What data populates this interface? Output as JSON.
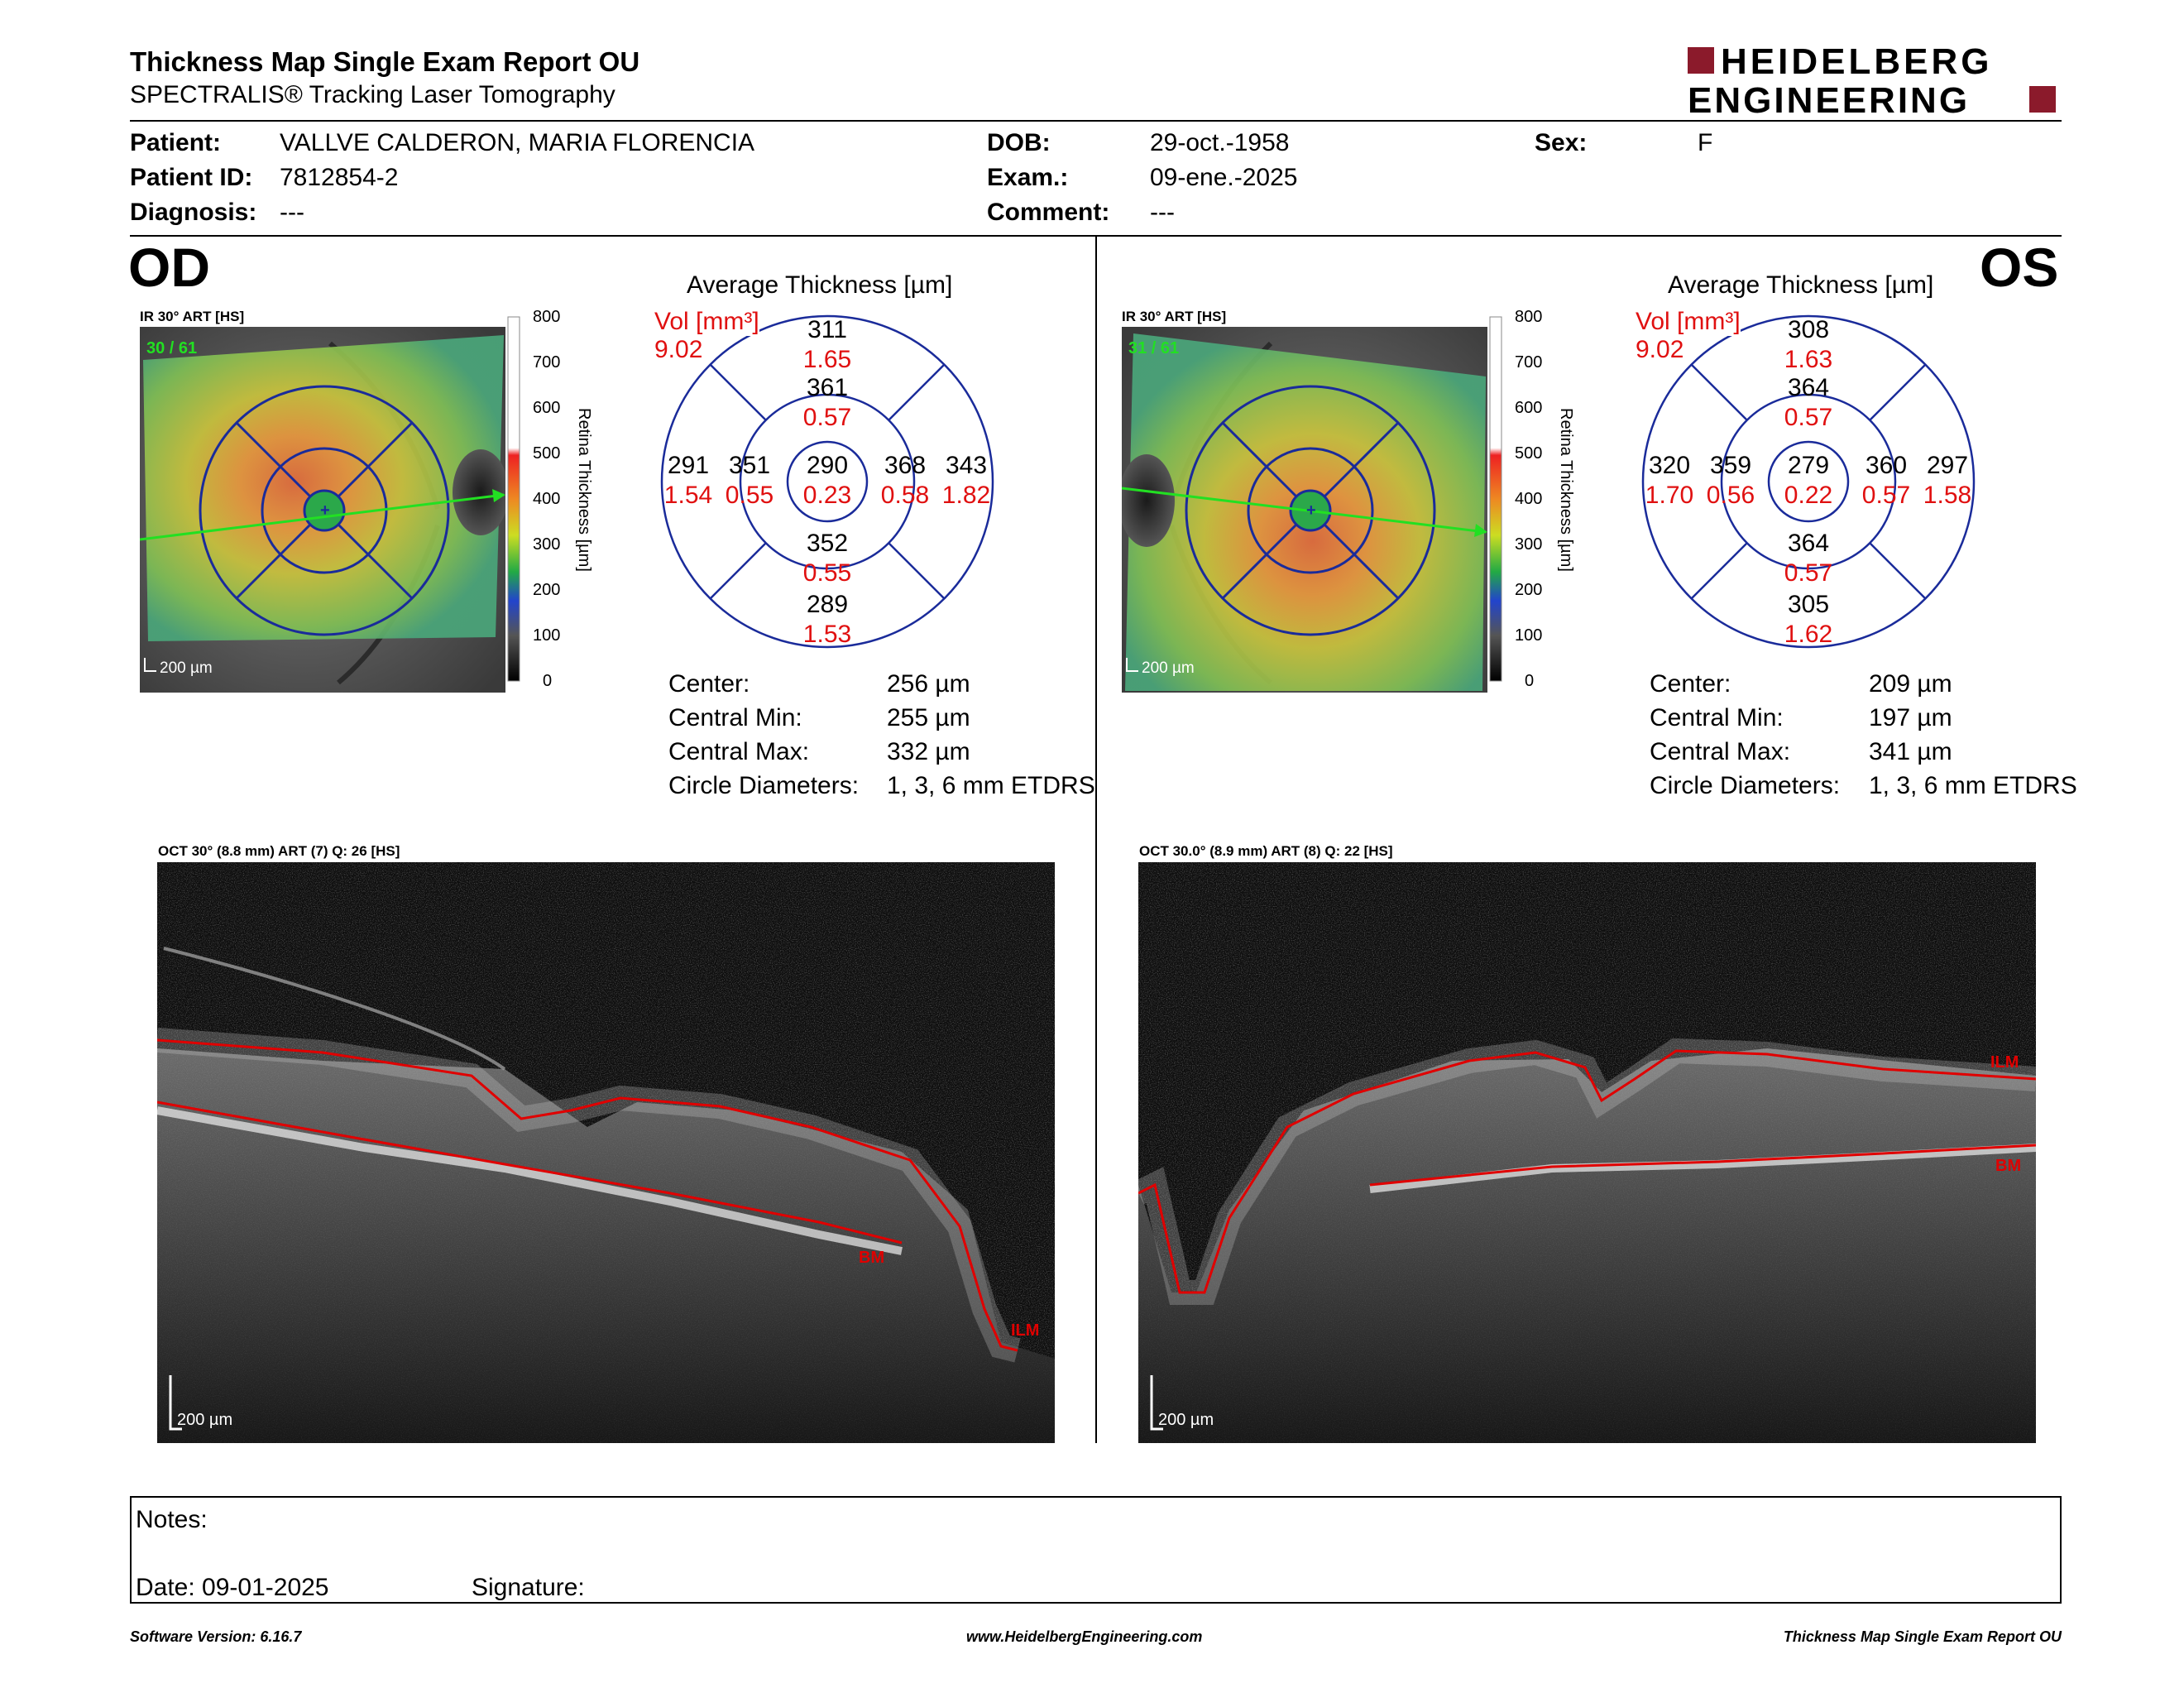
{
  "header": {
    "title": "Thickness Map Single Exam Report OU",
    "subtitle": "SPECTRALIS® Tracking Laser Tomography",
    "logo_line1": "HEIDELBERG",
    "logo_line2": "ENGINEERING",
    "logo_color": "#8b1a2b"
  },
  "patient": {
    "patient_label": "Patient:",
    "patient_value": "VALLVE CALDERON, MARIA FLORENCIA",
    "id_label": "Patient ID:",
    "id_value": "7812854-2",
    "diagnosis_label": "Diagnosis:",
    "diagnosis_value": "---",
    "dob_label": "DOB:",
    "dob_value": "29-oct.-1958",
    "exam_label": "Exam.:",
    "exam_value": "09-ene.-2025",
    "comment_label": "Comment:",
    "comment_value": "---",
    "sex_label": "Sex:",
    "sex_value": "F"
  },
  "od": {
    "eye_label": "OD",
    "ir_caption": "IR 30° ART [HS]",
    "ir_count": "30 / 61",
    "scale_label": "200 µm",
    "colorbar_ticks": [
      "800",
      "700",
      "600",
      "500",
      "400",
      "300",
      "200",
      "100",
      "0"
    ],
    "colorbar_title": "Retina Thickness [µm]",
    "grid_title": "Average Thickness [µm]",
    "vol_label": "Vol [mm³]",
    "vol_value": "9.02",
    "sectors": {
      "outer_top": {
        "t": "311",
        "v": "1.65"
      },
      "inner_top": {
        "t": "361",
        "v": "0.57"
      },
      "outer_left": {
        "t": "291",
        "v": "1.54"
      },
      "inner_left": {
        "t": "351",
        "v": "0.55"
      },
      "center": {
        "t": "290",
        "v": "0.23"
      },
      "inner_right": {
        "t": "368",
        "v": "0.58"
      },
      "outer_right": {
        "t": "343",
        "v": "1.82"
      },
      "inner_bottom": {
        "t": "352",
        "v": "0.55"
      },
      "outer_bottom": {
        "t": "289",
        "v": "1.53"
      }
    },
    "stats": {
      "center_label": "Center:",
      "center_value": "256 µm",
      "min_label": "Central Min:",
      "min_value": "255 µm",
      "max_label": "Central Max:",
      "max_value": "332 µm",
      "diam_label": "Circle Diameters:",
      "diam_value": "1, 3, 6 mm ETDRS"
    },
    "oct_caption": "OCT 30° (8.8 mm) ART (7) Q: 26 [HS]",
    "oct_scale": "200 µm",
    "ilm_label": "ILM",
    "bm_label": "BM"
  },
  "os": {
    "eye_label": "OS",
    "ir_caption": "IR 30° ART [HS]",
    "ir_count": "31 / 61",
    "scale_label": "200 µm",
    "colorbar_ticks": [
      "800",
      "700",
      "600",
      "500",
      "400",
      "300",
      "200",
      "100",
      "0"
    ],
    "colorbar_title": "Retina Thickness [µm]",
    "grid_title": "Average Thickness [µm]",
    "vol_label": "Vol [mm³]",
    "vol_value": "9.02",
    "sectors": {
      "outer_top": {
        "t": "308",
        "v": "1.63"
      },
      "inner_top": {
        "t": "364",
        "v": "0.57"
      },
      "outer_left": {
        "t": "320",
        "v": "1.70"
      },
      "inner_left": {
        "t": "359",
        "v": "0.56"
      },
      "center": {
        "t": "279",
        "v": "0.22"
      },
      "inner_right": {
        "t": "360",
        "v": "0.57"
      },
      "outer_right": {
        "t": "297",
        "v": "1.58"
      },
      "inner_bottom": {
        "t": "364",
        "v": "0.57"
      },
      "outer_bottom": {
        "t": "305",
        "v": "1.62"
      }
    },
    "stats": {
      "center_label": "Center:",
      "center_value": "209 µm",
      "min_label": "Central Min:",
      "min_value": "197 µm",
      "max_label": "Central Max:",
      "max_value": "341 µm",
      "diam_label": "Circle Diameters:",
      "diam_value": "1, 3, 6 mm ETDRS"
    },
    "oct_caption": "OCT 30.0° (8.9 mm) ART (8) Q: 22 [HS]",
    "oct_scale": "200 µm",
    "ilm_label": "ILM",
    "bm_label": "BM"
  },
  "notes": {
    "notes_label": "Notes:",
    "date_label": "Date: 09-01-2025",
    "signature_label": "Signature:"
  },
  "footer": {
    "software": "Software Version: 6.16.7",
    "website": "www.HeidelbergEngineering.com",
    "report": "Thickness Map Single Exam Report OU"
  }
}
